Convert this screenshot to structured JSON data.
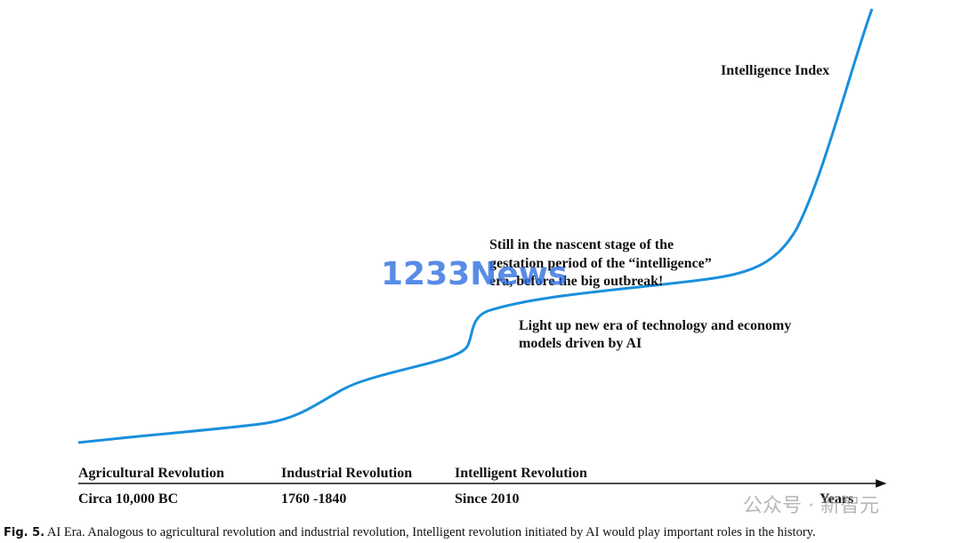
{
  "y_axis_label": "Intelligence Index",
  "x_axis_label": "Years",
  "annotations": {
    "nascent": [
      "Still in  the nascent stage of the",
      "gestation period of the “intelligence”",
      "era, before the big outbreak!"
    ],
    "light_up": [
      "Light up new era of technology and economy",
      "models driven by AI"
    ]
  },
  "eras": [
    {
      "name": "Agricultural Revolution",
      "time": "Circa 10,000 BC"
    },
    {
      "name": "Industrial Revolution",
      "time": "1760 -1840"
    },
    {
      "name": "Intelligent Revolution",
      "time": "Since 2010"
    }
  ],
  "caption": {
    "label": "Fig. 5.",
    "text": "AI Era. Analogous to agricultural revolution and industrial revolution, Intelligent revolution initiated by AI would play important roles in the history."
  },
  "watermarks": [
    "1233News",
    "公众号 · 新智元"
  ]
}
